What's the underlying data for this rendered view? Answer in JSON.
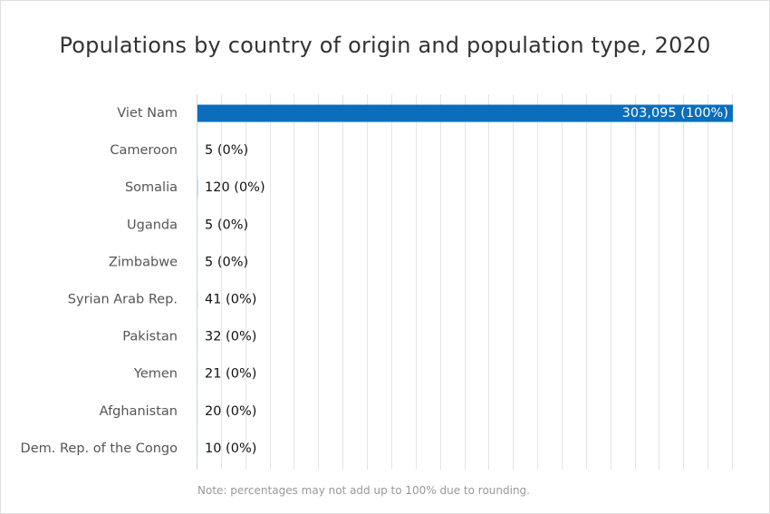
{
  "chart_data": {
    "type": "bar",
    "orientation": "horizontal",
    "title": "Populations by country of origin and population type, 2020",
    "categories": [
      "Viet Nam",
      "Cameroon",
      "Somalia",
      "Uganda",
      "Zimbabwe",
      "Syrian Arab Rep.",
      "Pakistan",
      "Yemen",
      "Afghanistan",
      "Dem. Rep. of the Congo"
    ],
    "values": [
      303095,
      5,
      120,
      5,
      5,
      41,
      32,
      21,
      20,
      10
    ],
    "data_labels": [
      "303,095 (100%)",
      "5 (0%)",
      "120 (0%)",
      "5 (0%)",
      "5 (0%)",
      "41 (0%)",
      "32 (0%)",
      "21 (0%)",
      "20 (0%)",
      "10 (0%)"
    ],
    "xlim": [
      0,
      303095
    ],
    "grid": true,
    "bar_color": "#0a6ebd",
    "note": "Note: percentages may not add up to 100% due to rounding."
  }
}
